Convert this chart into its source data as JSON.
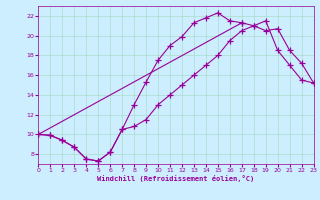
{
  "xlabel": "Windchill (Refroidissement éolien,°C)",
  "bg_color": "#cceeff",
  "line_color": "#990099",
  "marker": "+",
  "markersize": 4,
  "linewidth": 0.8,
  "xlim": [
    0,
    23
  ],
  "ylim": [
    7,
    23
  ],
  "xticks": [
    0,
    1,
    2,
    3,
    4,
    5,
    6,
    7,
    8,
    9,
    10,
    11,
    12,
    13,
    14,
    15,
    16,
    17,
    18,
    19,
    20,
    21,
    22,
    23
  ],
  "yticks": [
    8,
    10,
    12,
    14,
    16,
    18,
    20,
    22
  ],
  "grid_color": "#aaddcc",
  "curve1_x": [
    0,
    1,
    2,
    3,
    4,
    5,
    6,
    7,
    8,
    9,
    10,
    11,
    12,
    13,
    14,
    15,
    16,
    17
  ],
  "curve1_y": [
    10.0,
    9.9,
    9.4,
    8.7,
    7.5,
    7.3,
    8.2,
    10.5,
    13.0,
    15.3,
    17.5,
    19.0,
    19.9,
    21.3,
    21.8,
    22.3,
    21.5,
    21.3
  ],
  "curve2_x": [
    0,
    1,
    2,
    3,
    4,
    5,
    6,
    7,
    8,
    9,
    10,
    11,
    12,
    13,
    14,
    15,
    16,
    17,
    18,
    19,
    20,
    21,
    22,
    23
  ],
  "curve2_y": [
    10.0,
    9.9,
    9.4,
    8.7,
    7.5,
    7.3,
    8.2,
    10.5,
    10.8,
    11.5,
    13.0,
    14.0,
    15.0,
    16.0,
    17.0,
    18.0,
    19.5,
    20.5,
    21.0,
    21.5,
    18.5,
    17.0,
    15.5,
    15.2
  ],
  "curve3_x": [
    0,
    17,
    18,
    19,
    20,
    21,
    22,
    23
  ],
  "curve3_y": [
    10.0,
    21.3,
    21.0,
    20.5,
    20.7,
    18.5,
    17.2,
    15.2
  ]
}
